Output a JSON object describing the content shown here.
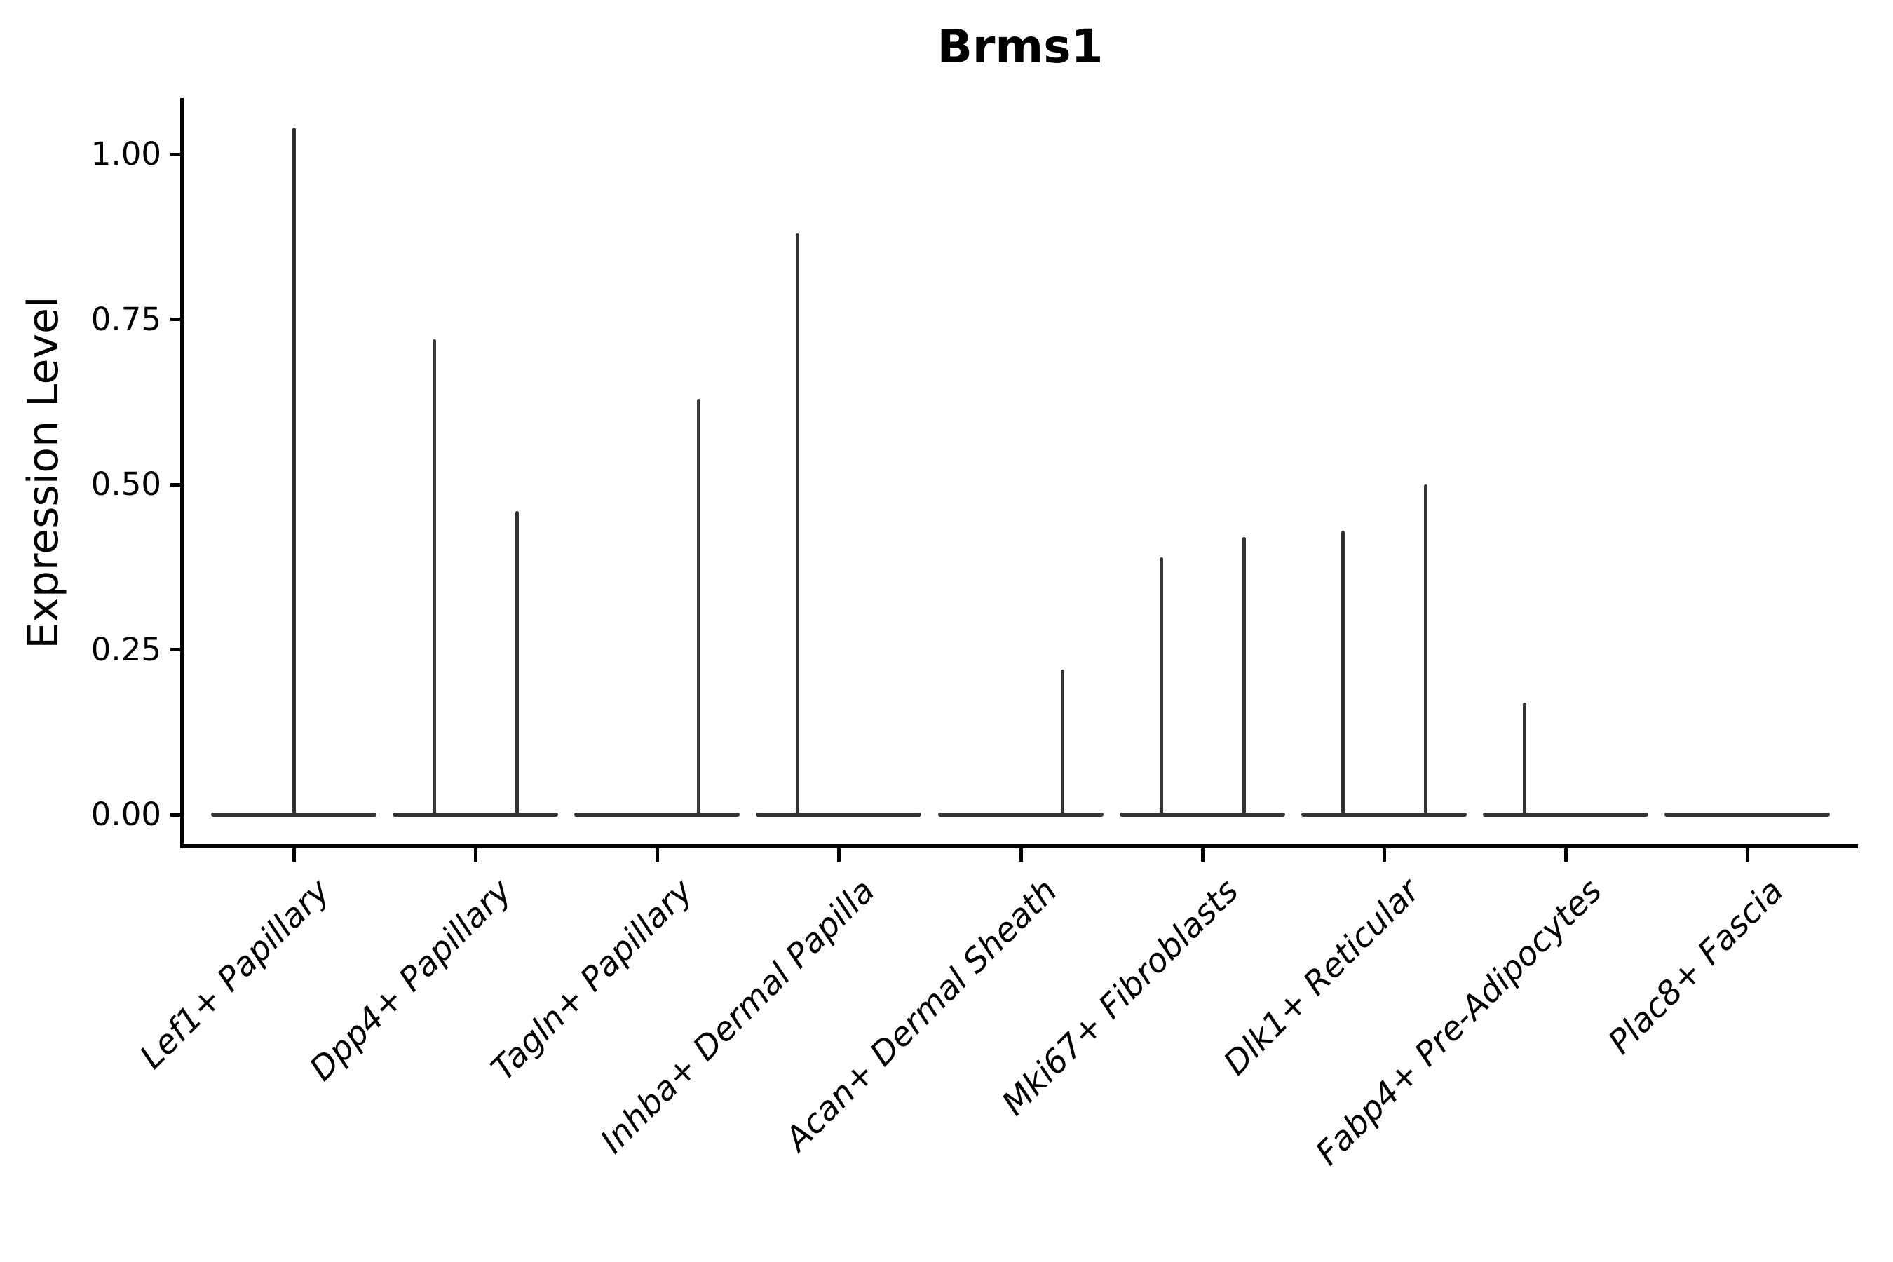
{
  "chart_data": {
    "type": "violin",
    "title": "Brms1",
    "xlabel": "",
    "ylabel": "Expression Level",
    "ylim": [
      -0.05,
      1.09
    ],
    "yticks": [
      0,
      0.25,
      0.5,
      0.75,
      1.0
    ],
    "ytick_labels": [
      "0.00",
      "0.25",
      "0.50",
      "0.75",
      "1.00"
    ],
    "grid": false,
    "legend": "none",
    "categories": [
      "Lef1+ Papillary",
      "Dpp4+ Papillary",
      "Tagln+ Papillary",
      "Inhba+ Dermal Papilla",
      "Acan+ Dermal Sheath",
      "Mki67+ Fibroblasts",
      "Dlk1+ Reticular",
      "Fabp4+ Pre-Adipocytes",
      "Plac8+ Fascia"
    ],
    "violins": [
      {
        "category": "Lef1+ Papillary",
        "spikes": [
          {
            "position": "center",
            "value": 1.04
          }
        ]
      },
      {
        "category": "Dpp4+ Papillary",
        "spikes": [
          {
            "position": "left",
            "value": 0.72
          },
          {
            "position": "right",
            "value": 0.46
          }
        ]
      },
      {
        "category": "Tagln+ Papillary",
        "spikes": [
          {
            "position": "right",
            "value": 0.63
          }
        ]
      },
      {
        "category": "Inhba+ Dermal Papilla",
        "spikes": [
          {
            "position": "left",
            "value": 0.88
          }
        ]
      },
      {
        "category": "Acan+ Dermal Sheath",
        "spikes": [
          {
            "position": "right",
            "value": 0.22
          }
        ]
      },
      {
        "category": "Mki67+ Fibroblasts",
        "spikes": [
          {
            "position": "left",
            "value": 0.39
          },
          {
            "position": "right",
            "value": 0.42
          }
        ]
      },
      {
        "category": "Dlk1+ Reticular",
        "spikes": [
          {
            "position": "left",
            "value": 0.43
          },
          {
            "position": "right",
            "value": 0.5
          }
        ]
      },
      {
        "category": "Fabp4+ Pre-Adipocytes",
        "spikes": [
          {
            "position": "left",
            "value": 0.17
          }
        ]
      },
      {
        "category": "Plac8+ Fascia",
        "spikes": []
      }
    ],
    "colors": {
      "violin": "#333333",
      "axis": "#000000",
      "text": "#000000",
      "background": "#ffffff"
    }
  }
}
